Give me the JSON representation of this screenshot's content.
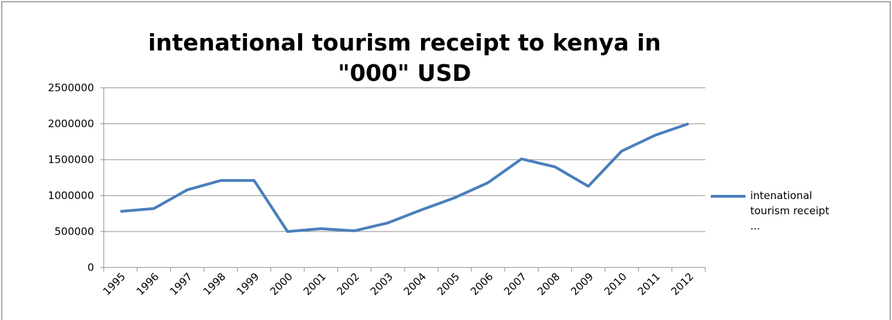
{
  "chart_data": {
    "type": "line",
    "title": "intenational tourism receipt to kenya in \"000\" USD",
    "categories": [
      "1995",
      "1996",
      "1997",
      "1998",
      "1999",
      "2000",
      "2001",
      "2002",
      "2003",
      "2004",
      "2005",
      "2006",
      "2007",
      "2008",
      "2009",
      "2010",
      "2011",
      "2012"
    ],
    "series": [
      {
        "name": "intenational tourism receipt ...",
        "color": "#4a7ebb",
        "values": [
          780000,
          820000,
          1080000,
          1210000,
          1210000,
          500000,
          540000,
          510000,
          620000,
          800000,
          970000,
          1180000,
          1510000,
          1400000,
          1130000,
          1620000,
          1840000,
          2000000
        ]
      }
    ],
    "ylim": [
      0,
      2500000
    ],
    "yticks": [
      0,
      500000,
      1000000,
      1500000,
      2000000,
      2500000
    ],
    "grid": true,
    "legend": "right"
  }
}
